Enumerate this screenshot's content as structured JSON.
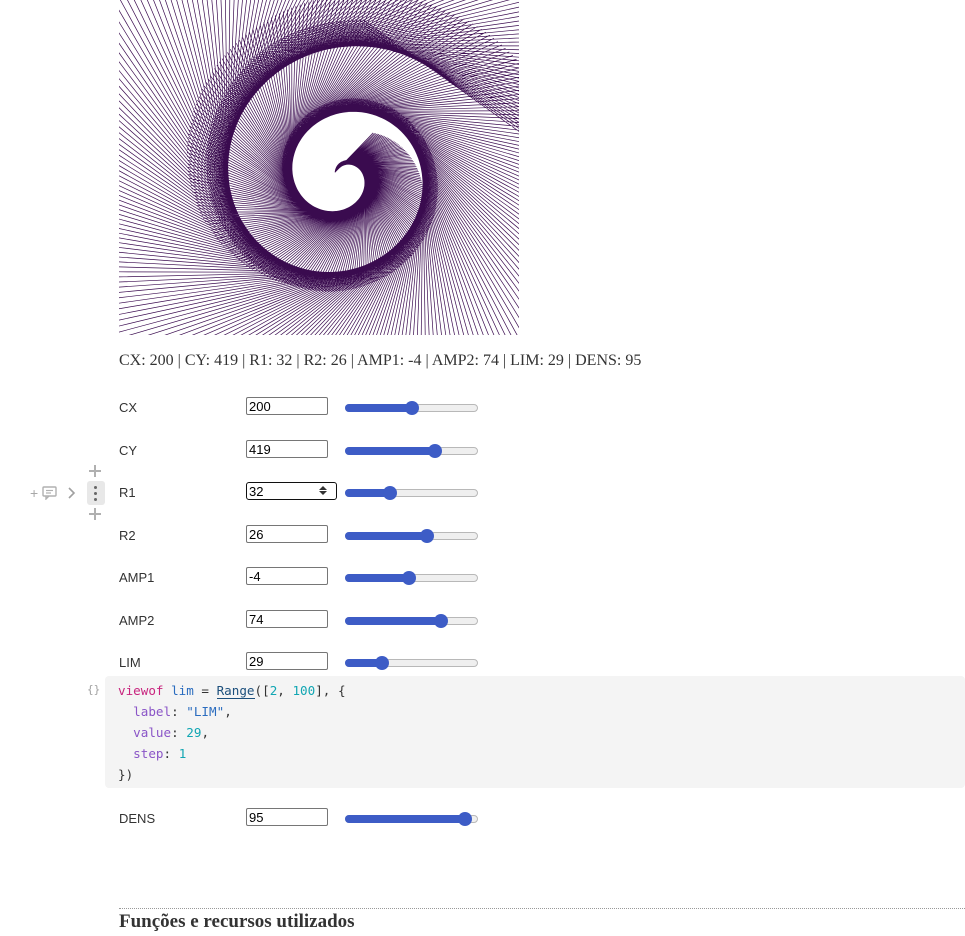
{
  "summary": "CX: 200 | CY: 419 | R1: 32 | R2: 26 | AMP1: -4 | AMP2: 74 | LIM: 29 | DENS: 95",
  "artwork": {
    "line_color": "#3a0b4f",
    "background": "#ffffff"
  },
  "controls": [
    {
      "name": "cx",
      "label": "CX",
      "value": "200",
      "min": 0,
      "max": 400,
      "fraction": 0.5
    },
    {
      "name": "cy",
      "label": "CY",
      "value": "419",
      "fraction": 0.68
    },
    {
      "name": "r1",
      "label": "R1",
      "value": "32",
      "fraction": 0.34,
      "active": true
    },
    {
      "name": "r2",
      "label": "R2",
      "value": "26",
      "fraction": 0.62
    },
    {
      "name": "amp1",
      "label": "AMP1",
      "value": "-4",
      "fraction": 0.48
    },
    {
      "name": "amp2",
      "label": "AMP2",
      "value": "74",
      "fraction": 0.72
    },
    {
      "name": "lim",
      "label": "LIM",
      "value": "29",
      "min": 2,
      "max": 100,
      "fraction": 0.28
    },
    {
      "name": "dens",
      "label": "DENS",
      "value": "95",
      "fraction": 0.9
    }
  ],
  "code_cell": {
    "braces_icon": "{}",
    "line1": {
      "kw": "viewof",
      "var": "lim",
      "eq": " = ",
      "fn": "Range",
      "open": "([",
      "a": "2",
      "comma": ", ",
      "b": "100",
      "close": "], {"
    },
    "line2": {
      "prop": "label",
      "colon": ": ",
      "str": "\"LIM\"",
      "end": ","
    },
    "line3": {
      "prop": "value",
      "colon": ": ",
      "num": "29",
      "end": ","
    },
    "line4": {
      "prop": "step",
      "colon": ": ",
      "num": "1"
    },
    "line5": "})"
  },
  "section_title": "Funções e recursos utilizados",
  "icons": {
    "add_cell": "plus-icon",
    "comment": "comment-icon",
    "expand": "chevron-right-icon",
    "menu": "kebab-menu-icon"
  },
  "colors": {
    "accent": "#3d5cc6",
    "code_bg": "#f4f4f4"
  }
}
